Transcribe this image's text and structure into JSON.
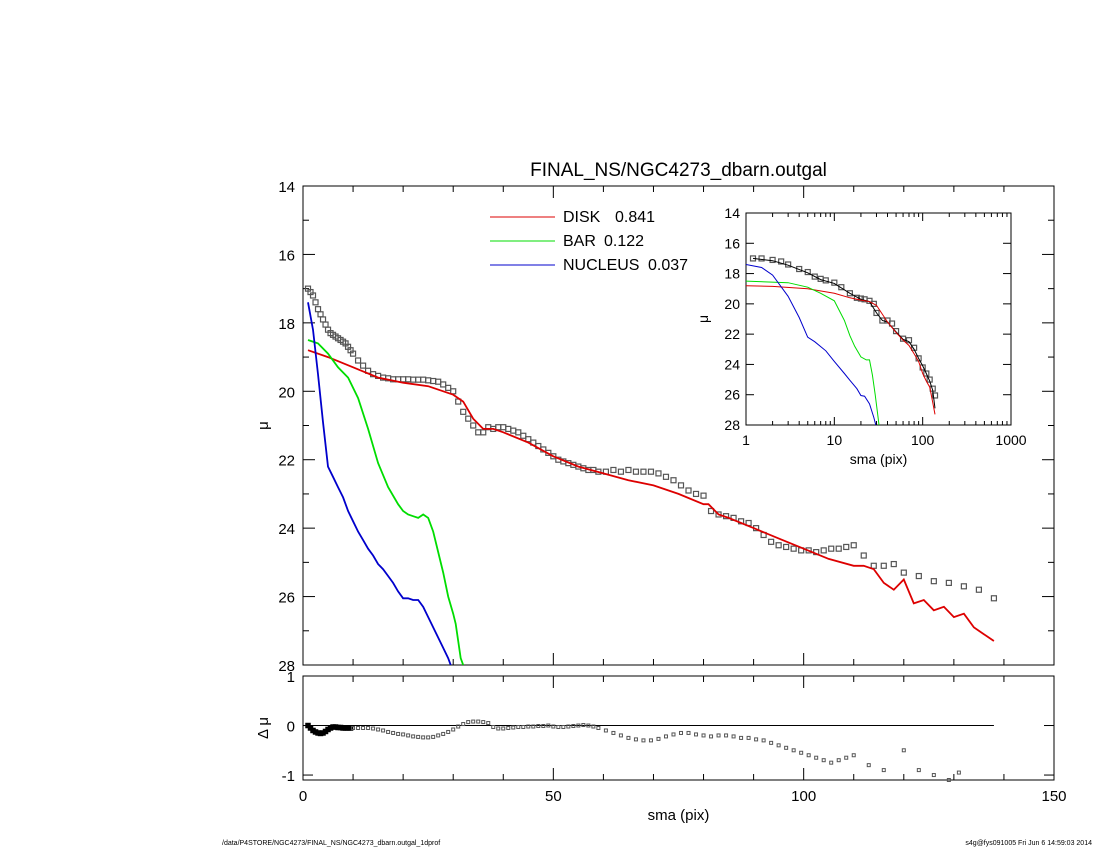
{
  "colors": {
    "disk": "#dd0000",
    "bar": "#00dd00",
    "nucleus": "#0000cc",
    "data": "#555555",
    "frame": "#000000"
  },
  "footer": {
    "left": "/data/P4STORE/NGC4273/FINAL_NS/NGC4273_dbarn.outgal_1dprof",
    "right": "s4g@fys091005  Fri Jun  6 14:59:03 2014"
  },
  "chart_data": [
    {
      "id": "main",
      "type": "line",
      "title": "FINAL_NS/NGC4273_dbarn.outgal",
      "xlabel": "",
      "ylabel": "μ",
      "xlim": [
        0,
        150
      ],
      "ylim": [
        28,
        14
      ],
      "y_inverted": true,
      "xticks": [
        "0",
        "50",
        "100",
        "150"
      ],
      "yticks": [
        "14",
        "16",
        "18",
        "20",
        "22",
        "24",
        "26",
        "28"
      ],
      "legend_position": "top-center",
      "legend": [
        {
          "name": "DISK",
          "value": "0.841",
          "color": "#dd0000"
        },
        {
          "name": "BAR",
          "value": "0.122",
          "color": "#00dd00"
        },
        {
          "name": "NUCLEUS",
          "value": "0.037",
          "color": "#0000cc"
        }
      ],
      "series": [
        {
          "key": "data",
          "style": "markers",
          "x": [
            1.0,
            1.5,
            2.0,
            2.5,
            3.0,
            3.5,
            4.0,
            4.5,
            5.0,
            5.5,
            6.0,
            6.5,
            7.0,
            7.5,
            8.0,
            8.5,
            9.0,
            9.5,
            10.0,
            11.0,
            12.0,
            13.0,
            14.0,
            15.0,
            16.0,
            17.0,
            18.0,
            19.0,
            20.0,
            21.0,
            22.0,
            23.0,
            24.0,
            25.0,
            26.0,
            27.0,
            28.0,
            29.0,
            30.0,
            31.0,
            32.0,
            33.0,
            34.0,
            35.0,
            36.0,
            37.0,
            38.0,
            39.0,
            40.0,
            41.0,
            42.0,
            43.0,
            44.0,
            45.0,
            46.0,
            47.0,
            48.0,
            49.0,
            50.0,
            51.0,
            52.0,
            53.0,
            54.0,
            55.0,
            56.0,
            57.0,
            58.0,
            59.0,
            60.5,
            62.0,
            63.5,
            65.0,
            66.5,
            68.0,
            69.5,
            71.0,
            72.5,
            74.0,
            75.5,
            77.0,
            78.5,
            80.0,
            81.5,
            83.0,
            84.5,
            86.0,
            87.5,
            89.0,
            90.5,
            92.0,
            93.5,
            95.0,
            96.5,
            98.0,
            99.5,
            101.0,
            102.5,
            104.0,
            105.5,
            107.0,
            108.5,
            110.0,
            112.0,
            114.0,
            116.0,
            118.0,
            120.0,
            123.0,
            126.0,
            129.0,
            132.0,
            135.0,
            138.0
          ],
          "y": [
            17.0,
            17.1,
            17.2,
            17.4,
            17.6,
            17.75,
            17.9,
            18.05,
            18.2,
            18.3,
            18.35,
            18.4,
            18.45,
            18.5,
            18.55,
            18.6,
            18.7,
            18.8,
            18.9,
            19.1,
            19.25,
            19.4,
            19.5,
            19.55,
            19.6,
            19.62,
            19.65,
            19.65,
            19.65,
            19.65,
            19.66,
            19.66,
            19.66,
            19.68,
            19.7,
            19.72,
            19.8,
            19.9,
            20.0,
            20.3,
            20.6,
            20.8,
            21.0,
            21.2,
            21.2,
            21.05,
            21.1,
            21.05,
            21.05,
            21.1,
            21.15,
            21.2,
            21.3,
            21.4,
            21.5,
            21.6,
            21.7,
            21.8,
            21.9,
            22.0,
            22.05,
            22.1,
            22.15,
            22.2,
            22.25,
            22.3,
            22.3,
            22.35,
            22.35,
            22.3,
            22.35,
            22.3,
            22.35,
            22.35,
            22.35,
            22.4,
            22.5,
            22.6,
            22.75,
            22.9,
            23.0,
            23.05,
            23.5,
            23.6,
            23.65,
            23.7,
            23.8,
            23.85,
            24.0,
            24.2,
            24.4,
            24.5,
            24.55,
            24.6,
            24.65,
            24.65,
            24.7,
            24.65,
            24.6,
            24.6,
            24.55,
            24.5,
            24.8,
            25.1,
            25.1,
            25.05,
            25.3,
            25.4,
            25.55,
            25.6,
            25.7,
            25.8,
            26.05
          ]
        },
        {
          "key": "disk",
          "name": "DISK",
          "style": "line",
          "color": "#dd0000",
          "x": [
            1,
            5,
            10,
            15,
            20,
            25,
            30,
            32,
            34,
            36,
            38,
            40,
            45,
            50,
            55,
            60,
            65,
            70,
            75,
            80,
            81,
            83,
            85,
            90,
            95,
            100,
            105,
            110,
            112,
            114,
            116,
            118,
            120,
            122,
            124,
            126,
            128,
            130,
            132,
            134,
            136,
            138
          ],
          "y": [
            18.8,
            19.0,
            19.3,
            19.6,
            19.75,
            19.85,
            20.1,
            20.3,
            20.8,
            21.1,
            21.1,
            21.2,
            21.5,
            21.9,
            22.2,
            22.4,
            22.6,
            22.75,
            23.0,
            23.3,
            23.3,
            23.6,
            23.7,
            24.0,
            24.3,
            24.6,
            24.9,
            25.1,
            25.1,
            25.2,
            25.6,
            25.8,
            25.5,
            26.2,
            26.1,
            26.4,
            26.3,
            26.6,
            26.5,
            26.9,
            27.1,
            27.3
          ]
        },
        {
          "key": "bar",
          "name": "BAR",
          "style": "line",
          "color": "#00dd00",
          "x": [
            1,
            3,
            5,
            7,
            9,
            11,
            13,
            15,
            17,
            19,
            20,
            21,
            22,
            23,
            24,
            25,
            26,
            27,
            28,
            29,
            30,
            30.5,
            31,
            31.5,
            32
          ],
          "y": [
            18.5,
            18.6,
            18.9,
            19.3,
            19.6,
            20.2,
            21.1,
            22.1,
            22.8,
            23.3,
            23.5,
            23.6,
            23.65,
            23.7,
            23.6,
            23.7,
            24.1,
            24.7,
            25.3,
            26.0,
            26.5,
            26.8,
            27.3,
            27.8,
            28.0
          ]
        },
        {
          "key": "nucleus",
          "name": "NUCLEUS",
          "style": "line",
          "color": "#0000cc",
          "x": [
            1,
            2,
            3,
            4,
            5,
            6,
            7,
            8,
            9,
            10,
            11,
            12,
            13,
            14,
            15,
            16,
            17,
            18,
            19,
            20,
            21,
            22,
            23,
            24,
            25,
            26,
            27,
            28,
            29,
            29.5
          ],
          "y": [
            17.4,
            18.2,
            19.5,
            20.9,
            22.2,
            22.5,
            22.8,
            23.1,
            23.5,
            23.8,
            24.1,
            24.35,
            24.6,
            24.8,
            25.05,
            25.2,
            25.4,
            25.6,
            25.85,
            26.05,
            26.05,
            26.1,
            26.1,
            26.3,
            26.6,
            26.9,
            27.2,
            27.5,
            27.8,
            28.0
          ]
        }
      ]
    },
    {
      "id": "residual",
      "type": "scatter",
      "xlabel": "sma (pix)",
      "ylabel": "Δ μ",
      "xlim": [
        0,
        150
      ],
      "ylim": [
        -1.1,
        1.0
      ],
      "xticks": [
        "0",
        "50",
        "100",
        "150"
      ],
      "yticks": [
        "1",
        "0",
        "-1"
      ],
      "reference_line": {
        "y": 0,
        "x_end": 138
      },
      "series": [
        {
          "key": "residual",
          "style": "markers",
          "x": [
            1.0,
            1.5,
            2.0,
            2.5,
            3.0,
            3.5,
            4.0,
            4.5,
            5.0,
            5.5,
            6.0,
            6.5,
            7.0,
            7.5,
            8.0,
            8.5,
            9.0,
            9.5,
            10.0,
            11.0,
            12.0,
            13.0,
            14.0,
            15.0,
            16.0,
            17.0,
            18.0,
            19.0,
            20.0,
            21.0,
            22.0,
            23.0,
            24.0,
            25.0,
            26.0,
            27.0,
            28.0,
            29.0,
            30.0,
            31.0,
            32.0,
            33.0,
            34.0,
            35.0,
            36.0,
            37.0,
            38.0,
            39.0,
            40.0,
            41.0,
            42.0,
            43.0,
            44.0,
            45.0,
            46.0,
            47.0,
            48.0,
            49.0,
            50.0,
            51.0,
            52.0,
            53.0,
            54.0,
            55.0,
            56.0,
            57.0,
            58.0,
            59.0,
            60.5,
            62.0,
            63.5,
            65.0,
            66.5,
            68.0,
            69.5,
            71.0,
            72.5,
            74.0,
            75.5,
            77.0,
            78.5,
            80.0,
            81.5,
            83.0,
            84.5,
            86.0,
            87.5,
            89.0,
            90.5,
            92.0,
            93.5,
            95.0,
            96.5,
            98.0,
            99.5,
            101.0,
            102.5,
            104.0,
            105.5,
            107.0,
            108.5,
            110.0,
            113.0,
            116.0,
            120.0,
            123.0,
            126.0,
            129.0,
            131.0
          ],
          "y": [
            0.0,
            -0.05,
            -0.1,
            -0.13,
            -0.15,
            -0.16,
            -0.15,
            -0.12,
            -0.08,
            -0.05,
            -0.03,
            -0.03,
            -0.04,
            -0.04,
            -0.05,
            -0.05,
            -0.05,
            -0.05,
            -0.05,
            -0.05,
            -0.05,
            -0.05,
            -0.06,
            -0.08,
            -0.1,
            -0.13,
            -0.15,
            -0.17,
            -0.18,
            -0.2,
            -0.22,
            -0.23,
            -0.24,
            -0.24,
            -0.23,
            -0.2,
            -0.17,
            -0.13,
            -0.08,
            -0.02,
            0.03,
            0.07,
            0.08,
            0.08,
            0.07,
            0.05,
            -0.03,
            -0.06,
            -0.06,
            -0.05,
            -0.04,
            -0.03,
            -0.03,
            -0.02,
            -0.02,
            -0.01,
            -0.01,
            0.0,
            -0.02,
            -0.03,
            -0.03,
            -0.02,
            -0.01,
            0.0,
            0.01,
            0.0,
            -0.02,
            -0.05,
            -0.1,
            -0.15,
            -0.2,
            -0.25,
            -0.28,
            -0.3,
            -0.3,
            -0.27,
            -0.22,
            -0.18,
            -0.15,
            -0.15,
            -0.18,
            -0.2,
            -0.22,
            -0.2,
            -0.2,
            -0.22,
            -0.25,
            -0.25,
            -0.28,
            -0.3,
            -0.35,
            -0.4,
            -0.45,
            -0.5,
            -0.55,
            -0.6,
            -0.65,
            -0.7,
            -0.75,
            -0.7,
            -0.65,
            -0.6,
            -0.8,
            -0.9,
            -0.5,
            -0.9,
            -1.0,
            -1.1,
            -0.95
          ]
        }
      ]
    },
    {
      "id": "inset",
      "type": "line",
      "xlabel": "sma (pix)",
      "ylabel": "μ",
      "xscale": "log",
      "xlim": [
        1,
        1000
      ],
      "ylim": [
        28,
        14
      ],
      "y_inverted": true,
      "xticks": [
        "1",
        "10",
        "100",
        "1000"
      ],
      "yticks": [
        "14",
        "16",
        "18",
        "20",
        "22",
        "24",
        "26",
        "28"
      ],
      "series": [
        {
          "key": "data",
          "style": "markers",
          "x": [
            1.2,
            1.5,
            2,
            2.5,
            3,
            4,
            5,
            6,
            7,
            8,
            10,
            12,
            15,
            18,
            20,
            22,
            25,
            28,
            30,
            35,
            40,
            45,
            50,
            60,
            70,
            80,
            90,
            100,
            110,
            120,
            130,
            138
          ],
          "y": [
            17.0,
            17.0,
            17.1,
            17.2,
            17.4,
            17.7,
            17.9,
            18.2,
            18.35,
            18.45,
            18.6,
            18.9,
            19.3,
            19.6,
            19.65,
            19.7,
            19.8,
            20.0,
            20.6,
            21.1,
            21.1,
            21.3,
            21.8,
            22.3,
            22.4,
            22.9,
            23.6,
            24.2,
            24.6,
            25.0,
            25.6,
            26.05
          ]
        },
        {
          "key": "model",
          "style": "line",
          "color": "#000000",
          "x": [
            1.2,
            2,
            3,
            5,
            7,
            10,
            15,
            20,
            25,
            30,
            35,
            40,
            50,
            60,
            70,
            80,
            90,
            100,
            110,
            120,
            130,
            138
          ],
          "y": [
            17.0,
            17.15,
            17.45,
            17.95,
            18.4,
            18.65,
            19.3,
            19.7,
            19.85,
            20.6,
            21.1,
            21.2,
            21.85,
            22.35,
            22.5,
            23.0,
            23.6,
            24.1,
            24.6,
            25.1,
            25.7,
            26.9
          ]
        },
        {
          "key": "disk",
          "style": "line",
          "color": "#dd0000",
          "x": [
            1,
            2,
            5,
            10,
            15,
            20,
            25,
            30,
            40,
            50,
            60,
            70,
            80,
            90,
            100,
            110,
            120,
            130,
            138
          ],
          "y": [
            18.8,
            18.85,
            19.0,
            19.3,
            19.6,
            19.75,
            19.85,
            20.1,
            21.2,
            21.9,
            22.4,
            22.75,
            23.3,
            23.8,
            24.6,
            25.1,
            25.5,
            26.5,
            27.3
          ]
        },
        {
          "key": "bar",
          "style": "line",
          "color": "#00dd00",
          "x": [
            1,
            3,
            5,
            7,
            10,
            13,
            15,
            17,
            20,
            23,
            25,
            27,
            29,
            31,
            32
          ],
          "y": [
            18.5,
            18.6,
            18.9,
            19.3,
            19.8,
            21.1,
            22.1,
            22.8,
            23.5,
            23.7,
            23.7,
            24.7,
            26.0,
            27.3,
            28.0
          ]
        },
        {
          "key": "nucleus",
          "style": "line",
          "color": "#0000cc",
          "x": [
            1,
            1.5,
            2,
            3,
            4,
            5,
            6,
            8,
            10,
            13,
            15,
            18,
            20,
            22,
            25,
            28,
            29.5
          ],
          "y": [
            17.4,
            17.6,
            18.1,
            19.5,
            20.9,
            22.2,
            22.5,
            23.1,
            23.8,
            24.6,
            25.05,
            25.6,
            26.05,
            26.1,
            26.6,
            27.5,
            28.0
          ]
        }
      ]
    }
  ]
}
